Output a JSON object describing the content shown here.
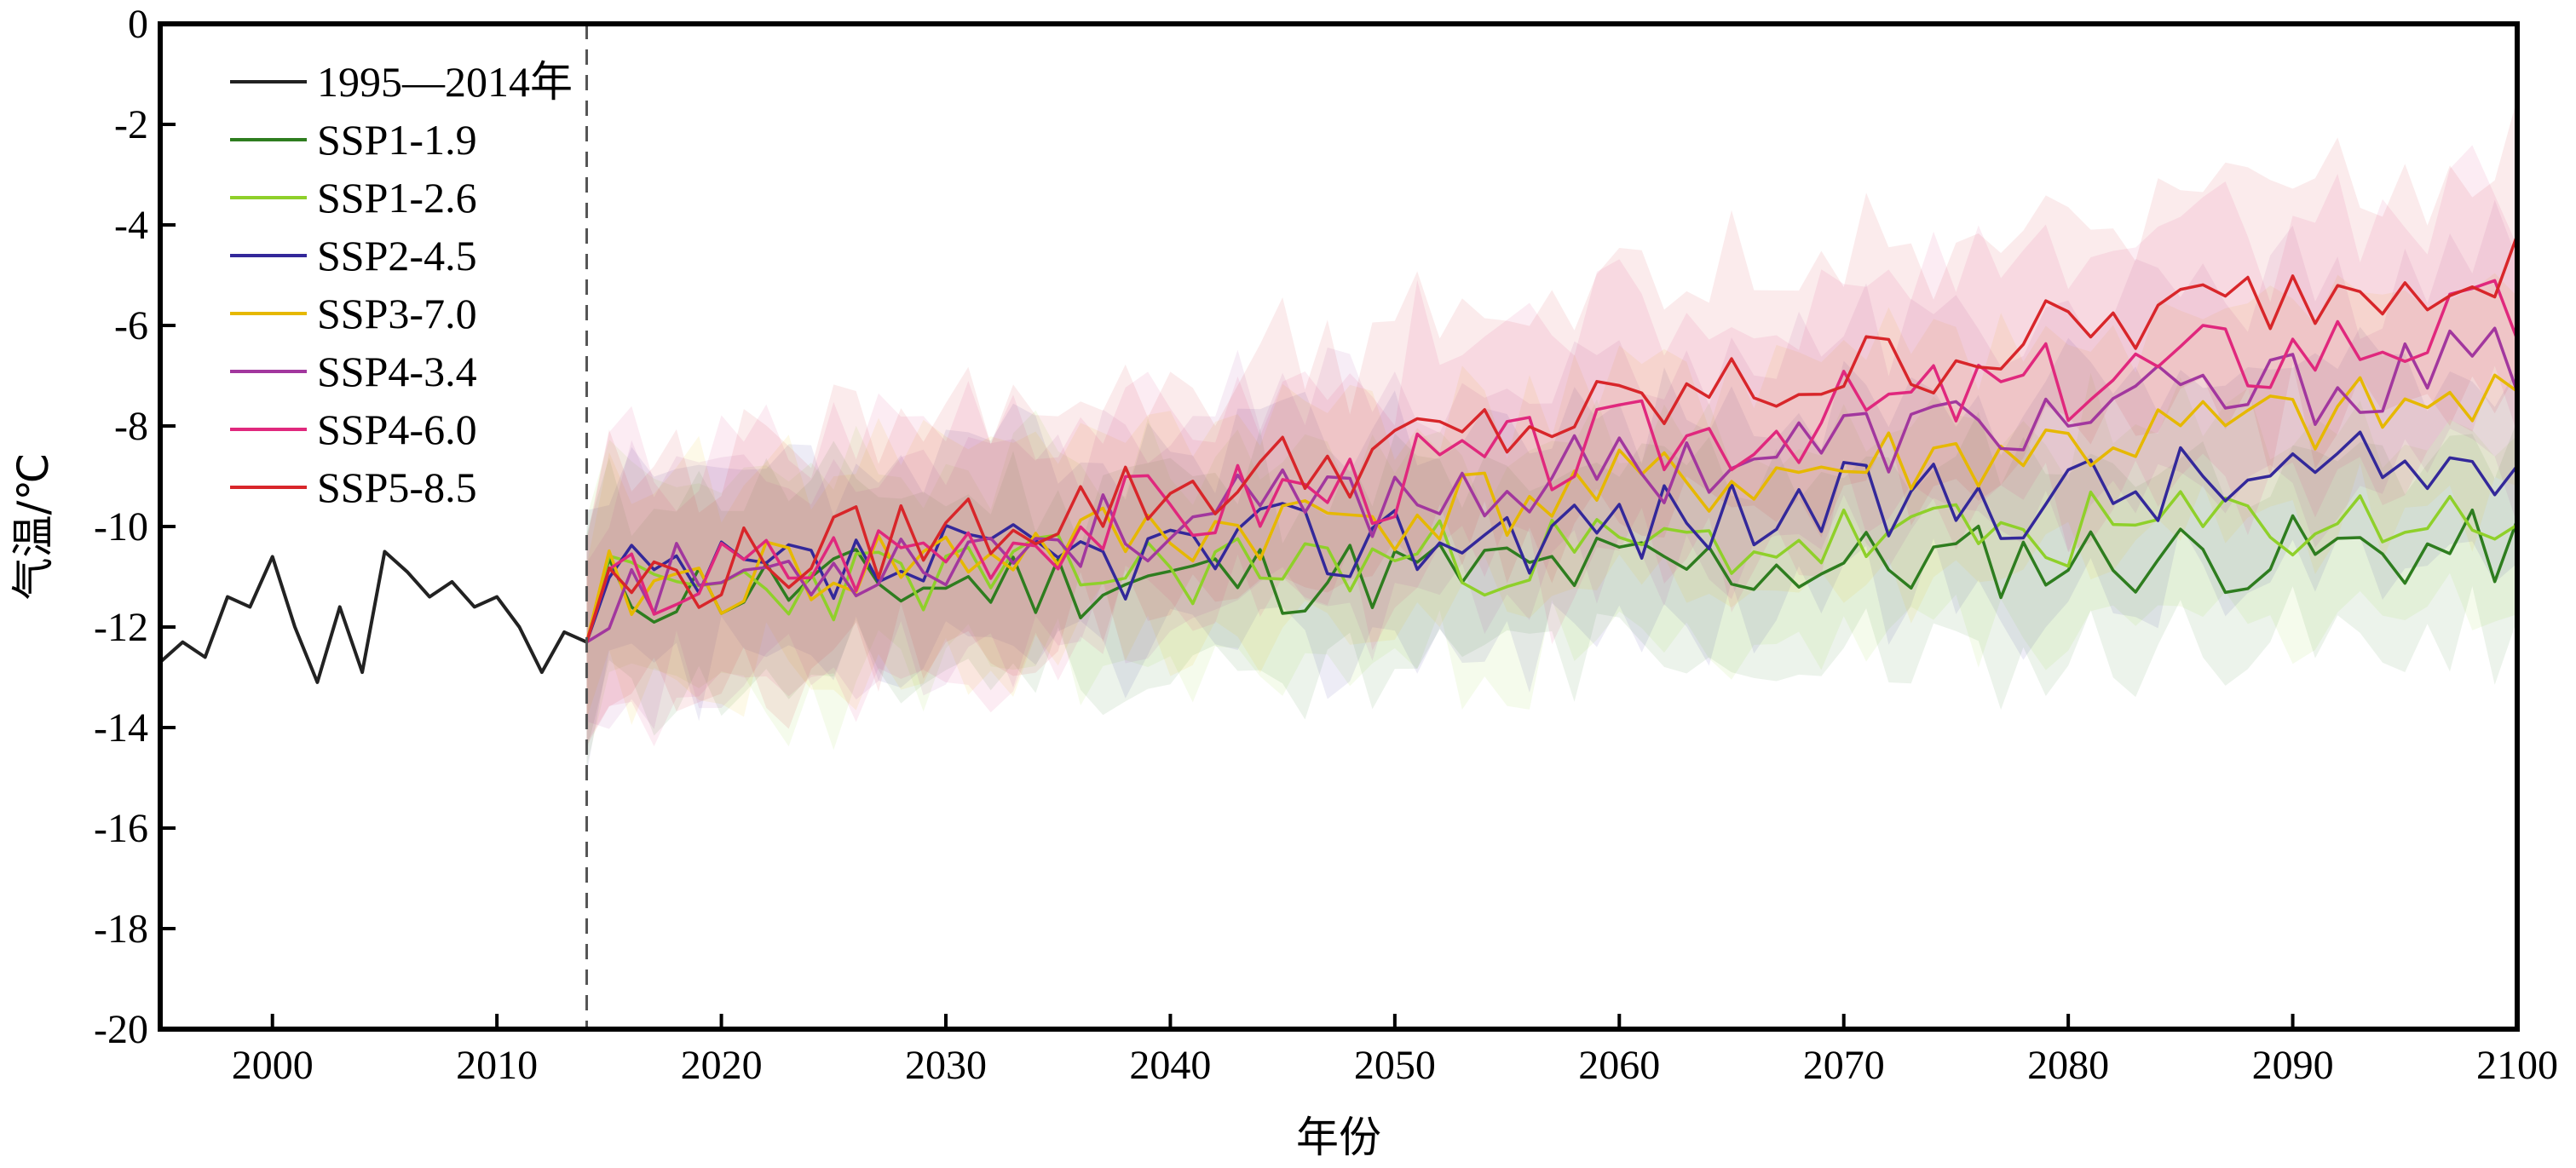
{
  "chart_data": {
    "type": "line",
    "title": "",
    "xlabel": "年份",
    "ylabel": "气温/℃",
    "xlim": [
      1995,
      2100
    ],
    "ylim": [
      -20,
      0
    ],
    "xticks": [
      2000,
      2010,
      2020,
      2030,
      2040,
      2050,
      2060,
      2070,
      2080,
      2090,
      2100
    ],
    "yticks": [
      0,
      -2,
      -4,
      -6,
      -8,
      -10,
      -12,
      -14,
      -16,
      -18,
      -20
    ],
    "grid": false,
    "legend_position": "top-left",
    "reference_line_x": 2014,
    "historical": {
      "name": "1995—2014年",
      "color": "#222222",
      "x": [
        1995,
        1996,
        1997,
        1998,
        1999,
        2000,
        2001,
        2002,
        2003,
        2004,
        2005,
        2006,
        2007,
        2008,
        2009,
        2010,
        2011,
        2012,
        2013,
        2014
      ],
      "y": [
        -12.7,
        -12.3,
        -12.6,
        -11.4,
        -11.6,
        -10.6,
        -12.0,
        -13.1,
        -11.6,
        -12.9,
        -10.5,
        -10.9,
        -11.4,
        -11.1,
        -11.6,
        -11.4,
        -12.0,
        -12.9,
        -12.1,
        -12.3
      ]
    },
    "series": [
      {
        "name": "SSP1-1.9",
        "color": "#2e7d1f",
        "start": -12.3,
        "slope": 0.01,
        "amp": 0.8,
        "band": 2.2,
        "seed": 11
      },
      {
        "name": "SSP1-2.6",
        "color": "#8fd02a",
        "start": -12.3,
        "slope": 0.018,
        "amp": 0.8,
        "band": 2.4,
        "seed": 23
      },
      {
        "name": "SSP2-4.5",
        "color": "#33289a",
        "start": -12.3,
        "slope": 0.03,
        "amp": 0.9,
        "band": 2.4,
        "seed": 37
      },
      {
        "name": "SSP3-7.0",
        "color": "#e6b800",
        "start": -12.3,
        "slope": 0.044,
        "amp": 0.8,
        "band": 2.5,
        "seed": 41
      },
      {
        "name": "SSP4-3.4",
        "color": "#a2379e",
        "start": -12.3,
        "slope": 0.053,
        "amp": 0.8,
        "band": 2.4,
        "seed": 53
      },
      {
        "name": "SSP4-6.0",
        "color": "#e0287d",
        "start": -12.3,
        "slope": 0.064,
        "amp": 0.9,
        "band": 2.8,
        "seed": 67
      },
      {
        "name": "SSP5-8.5",
        "color": "#d8262a",
        "start": -12.3,
        "slope": 0.078,
        "amp": 0.8,
        "band": 2.7,
        "seed": 79
      }
    ]
  }
}
